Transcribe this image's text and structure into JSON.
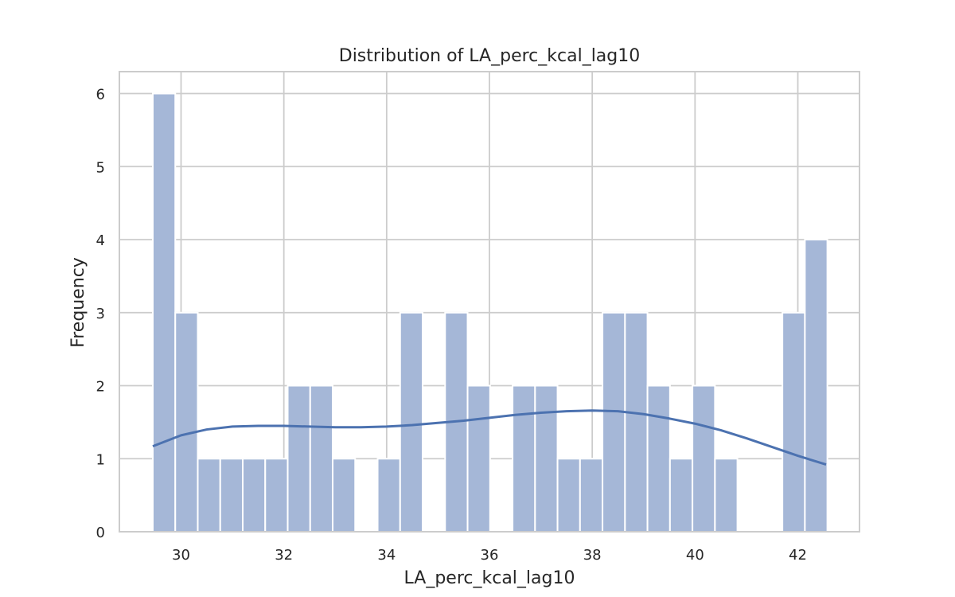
{
  "chart_data": {
    "type": "bar",
    "title": "Distribution of LA_perc_kcal_lag10",
    "xlabel": "LA_perc_kcal_lag10",
    "ylabel": "Frequency",
    "xlim": [
      28.8,
      43.2
    ],
    "ylim": [
      0,
      6.3
    ],
    "x_ticks": [
      30,
      32,
      34,
      36,
      38,
      40,
      42
    ],
    "y_ticks": [
      0,
      1,
      2,
      3,
      4,
      5,
      6
    ],
    "grid": true,
    "bin_start": 29.45,
    "bin_width": 0.4375,
    "values": [
      6,
      3,
      1,
      1,
      1,
      1,
      2,
      2,
      1,
      0,
      1,
      3,
      0,
      3,
      2,
      0,
      2,
      2,
      1,
      1,
      3,
      3,
      2,
      1,
      2,
      1,
      0,
      0,
      3,
      4
    ],
    "kde": {
      "x": [
        29.45,
        30.0,
        30.5,
        31.0,
        31.5,
        32.0,
        32.5,
        33.0,
        33.5,
        34.0,
        34.5,
        35.0,
        35.5,
        36.0,
        36.5,
        37.0,
        37.5,
        38.0,
        38.5,
        39.0,
        39.5,
        40.0,
        40.5,
        41.0,
        41.5,
        42.0,
        42.55
      ],
      "y": [
        1.17,
        1.32,
        1.4,
        1.44,
        1.45,
        1.45,
        1.44,
        1.43,
        1.43,
        1.44,
        1.46,
        1.49,
        1.52,
        1.56,
        1.6,
        1.63,
        1.65,
        1.66,
        1.65,
        1.61,
        1.55,
        1.48,
        1.39,
        1.28,
        1.16,
        1.04,
        0.92
      ]
    },
    "colors": {
      "bar_fill": "#a5b7d7",
      "bar_edge": "#ffffff",
      "kde_line": "#4c72b0",
      "grid": "#cccccc",
      "frame": "#cccccc",
      "text": "#262626"
    }
  }
}
